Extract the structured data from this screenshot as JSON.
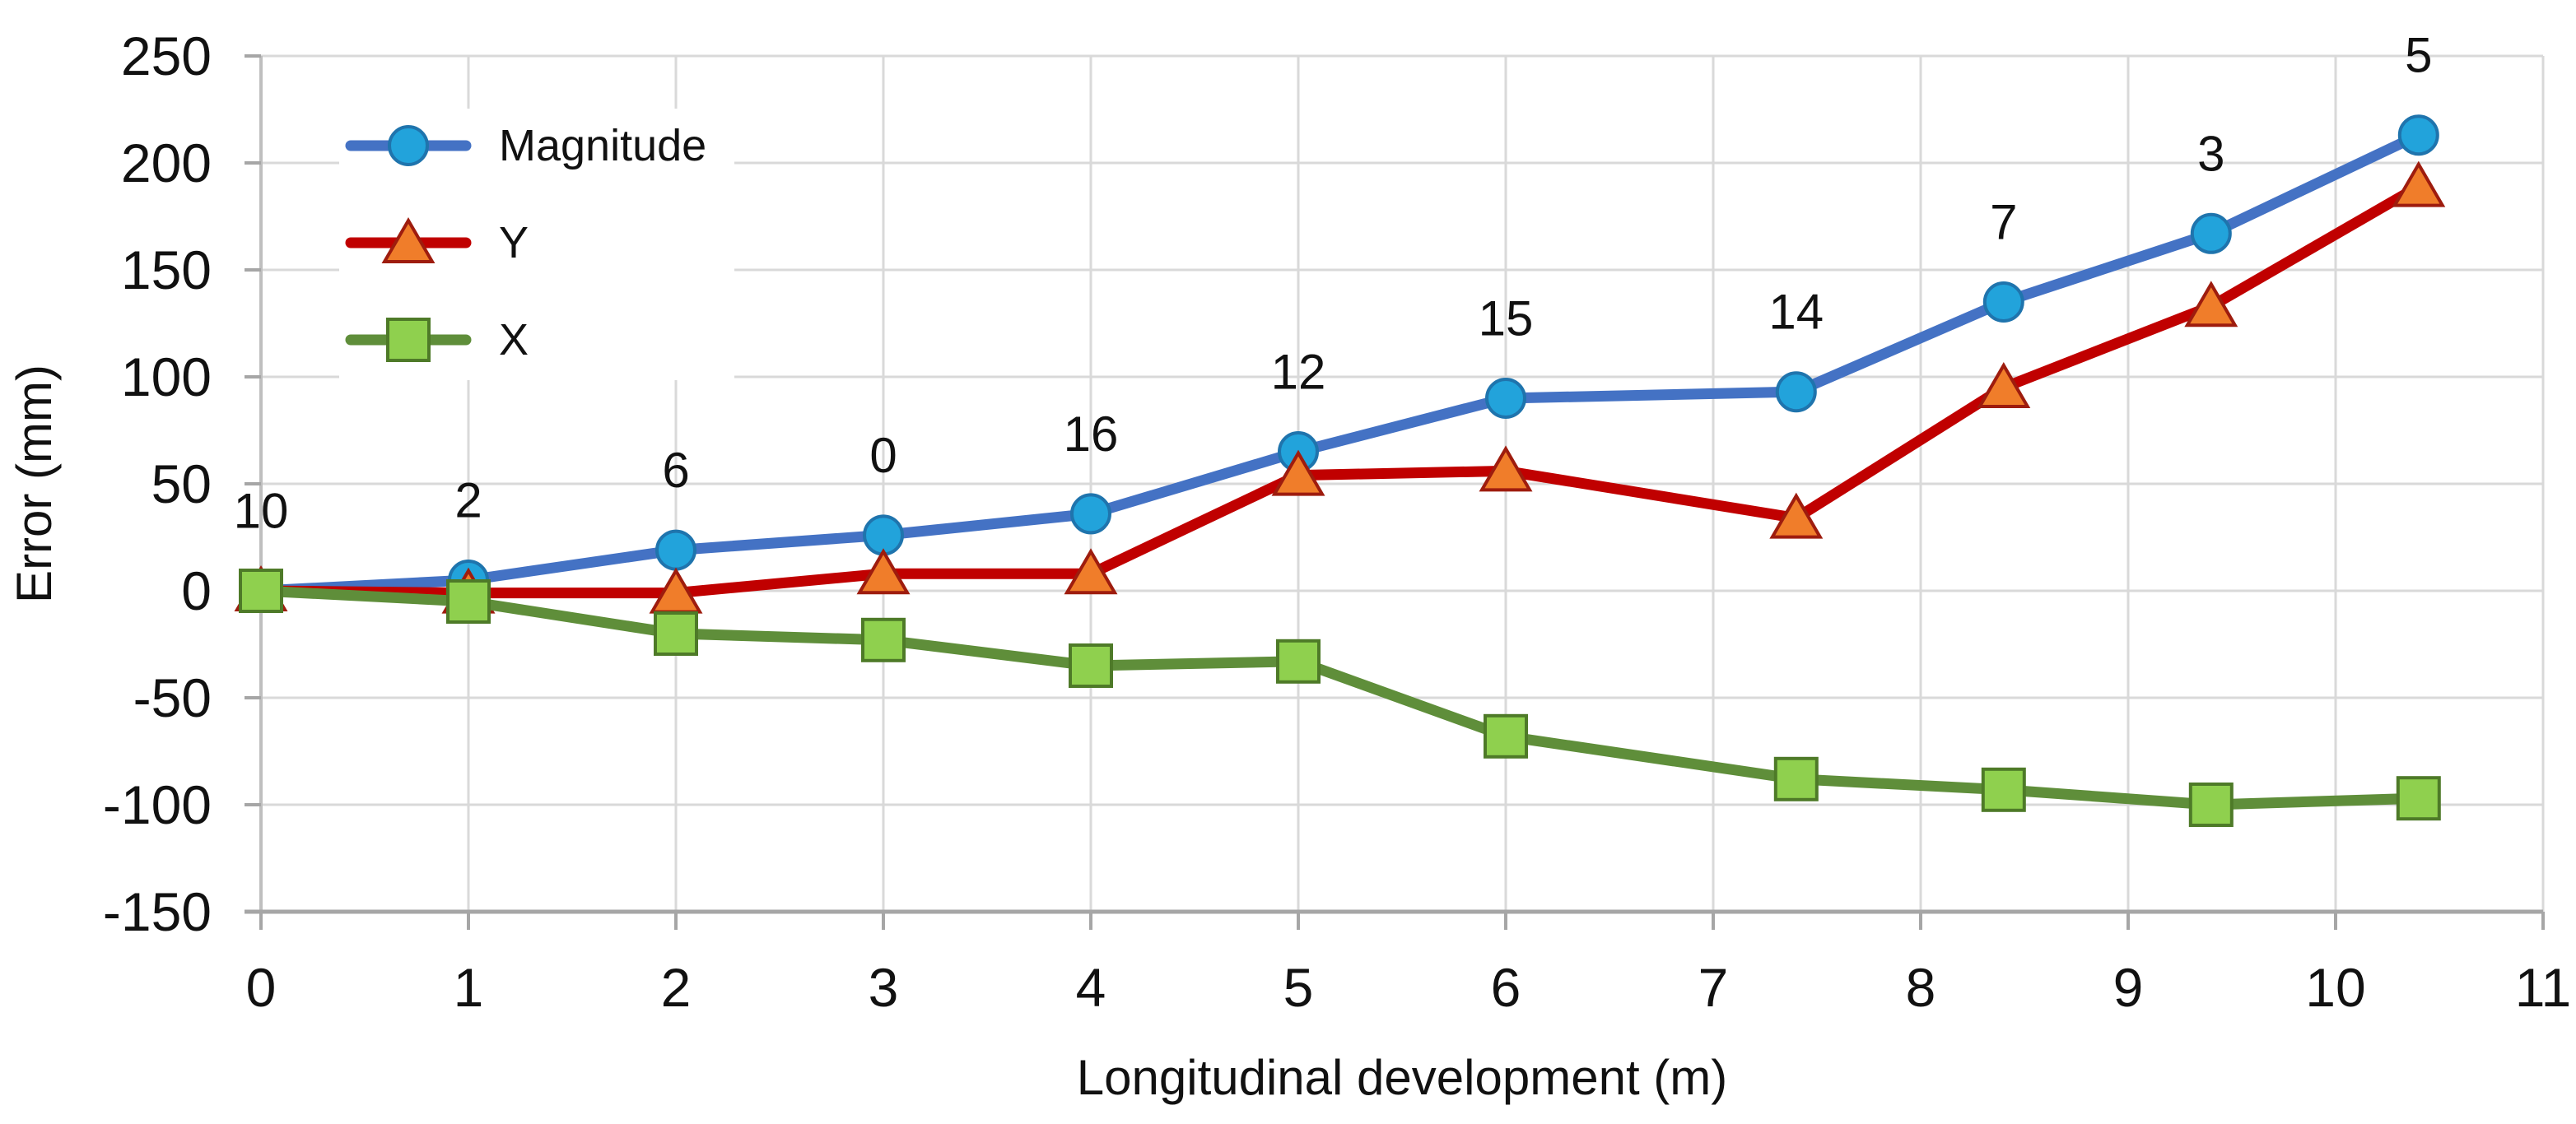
{
  "figure": {
    "background": "#ffffff"
  },
  "style": {
    "gridline_color": "#d9d9d9",
    "left_axis_color": "#bfbfbf",
    "bottom_axis_color": "#a6a6a6",
    "tick_color": "#a6a6a6",
    "text_color": "#111111",
    "legend_background": "#ffffff"
  },
  "chart_data": {
    "type": "line",
    "title": "",
    "xlabel": "Longitudinal development (m)",
    "ylabel": "Error (mm)",
    "xlim": [
      0,
      11
    ],
    "ylim": [
      -150,
      250
    ],
    "x_ticks": [
      0,
      1,
      2,
      3,
      4,
      5,
      6,
      7,
      8,
      9,
      10,
      11
    ],
    "y_ticks": [
      250,
      200,
      150,
      100,
      50,
      0,
      -50,
      -100,
      -150
    ],
    "grid": true,
    "legend_position": "top-left",
    "x": [
      0,
      1,
      2,
      3,
      4,
      5,
      6,
      7.4,
      8.4,
      9.4,
      10.4
    ],
    "series": [
      {
        "name": "Magnitude",
        "line_color": "#4472c4",
        "marker": "circle",
        "marker_fill": "#22a3db",
        "marker_stroke": "#1f74ad",
        "values": [
          0,
          5,
          19,
          26,
          36,
          65,
          90,
          93,
          135,
          167,
          213
        ]
      },
      {
        "name": "Y",
        "line_color": "#c00000",
        "marker": "triangle",
        "marker_fill": "#f07d2a",
        "marker_stroke": "#9e1c0e",
        "values": [
          0,
          -1,
          -1,
          8,
          8,
          54,
          56,
          34,
          95,
          133,
          189
        ]
      },
      {
        "name": "X",
        "line_color": "#5f8e3a",
        "marker": "square",
        "marker_fill": "#8fd04e",
        "marker_stroke": "#4e7a28",
        "values": [
          0,
          -5,
          -20,
          -23,
          -35,
          -33,
          -68,
          -88,
          -93,
          -100,
          -97
        ]
      }
    ],
    "point_labels": [
      "10",
      "2",
      "6",
      "0",
      "16",
      "12",
      "15",
      "14",
      "7",
      "3",
      "5"
    ],
    "point_labels_follow_series": "Magnitude"
  }
}
